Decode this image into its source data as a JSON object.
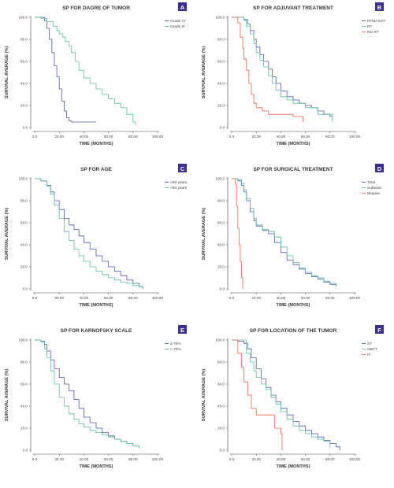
{
  "chart_data": [
    {
      "type": "line",
      "letter": "A",
      "title": "SP FOR DAGRE OF TUMOR",
      "xlabel": "TIME (MONTHS)",
      "ylabel": "SURVIVAL AVERAGE (%)",
      "xlim": [
        0,
        100
      ],
      "ylim": [
        0,
        100
      ],
      "xticks": [
        "0.0",
        "20.00",
        "40.00",
        "60.00",
        "80.00",
        "100.00"
      ],
      "yticks": [
        "0.0",
        "20.0",
        "40.0",
        "60.0",
        "80.0",
        "100.0"
      ],
      "legend_position": "top-right",
      "series": [
        {
          "name": "Grade IV",
          "color": "#4b5aa8",
          "x": [
            0,
            8,
            10,
            12,
            14,
            16,
            18,
            20,
            22,
            24,
            26,
            28,
            30,
            50
          ],
          "y": [
            100,
            97,
            90,
            80,
            68,
            56,
            46,
            35,
            24,
            15,
            9,
            6,
            5,
            5
          ]
        },
        {
          "name": "Grade III",
          "color": "#5bbfa0",
          "x": [
            0,
            5,
            10,
            15,
            18,
            20,
            23,
            25,
            28,
            30,
            33,
            36,
            40,
            45,
            50,
            55,
            60,
            65,
            70,
            75,
            80,
            82
          ],
          "y": [
            100,
            99,
            96,
            92,
            88,
            85,
            82,
            78,
            74,
            68,
            60,
            52,
            45,
            40,
            35,
            30,
            26,
            22,
            18,
            12,
            5,
            2
          ]
        }
      ]
    },
    {
      "type": "line",
      "letter": "B",
      "title": "SP FOR ADJUVANT TREATMENT",
      "xlabel": "TIME (MONTHS)",
      "ylabel": "SURVIVAL AVERAGE (%)",
      "xlim": [
        0,
        100
      ],
      "ylim": [
        0,
        100
      ],
      "xticks": [
        "0.0",
        "20.00",
        "40.00",
        "60.00",
        "80.00",
        "100.00"
      ],
      "yticks": [
        "0.0",
        "20.0",
        "40.0",
        "60.0",
        "80.0",
        "100.0"
      ],
      "legend_position": "top-right",
      "series": [
        {
          "name": "RTMASOT",
          "color": "#4b5aa8",
          "x": [
            0,
            10,
            13,
            15,
            18,
            20,
            23,
            26,
            30,
            33,
            36,
            40,
            45,
            50,
            55,
            60,
            65,
            70,
            75,
            80,
            82
          ],
          "y": [
            100,
            98,
            94,
            88,
            80,
            73,
            66,
            60,
            53,
            46,
            40,
            33,
            28,
            25,
            22,
            20,
            18,
            15,
            12,
            10,
            8
          ]
        },
        {
          "name": "RT",
          "color": "#5bbfa0",
          "x": [
            0,
            10,
            12,
            15,
            18,
            20,
            23,
            26,
            30,
            33,
            36,
            40,
            45,
            50,
            60,
            70,
            80,
            82
          ],
          "y": [
            100,
            97,
            92,
            85,
            76,
            68,
            61,
            55,
            47,
            40,
            34,
            28,
            25,
            22,
            18,
            12,
            12,
            5
          ]
        },
        {
          "name": "NO RT",
          "color": "#f0654a",
          "x": [
            0,
            5,
            7,
            9,
            10,
            12,
            14,
            16,
            18,
            20,
            25,
            30,
            40,
            50,
            55,
            58
          ],
          "y": [
            100,
            95,
            82,
            72,
            62,
            52,
            40,
            30,
            22,
            18,
            15,
            12,
            12,
            10,
            10,
            5
          ]
        }
      ]
    },
    {
      "type": "line",
      "letter": "C",
      "title": "SP FOR AGE",
      "xlabel": "TIME (MONTHS)",
      "ylabel": "SURVIVAL AVERAGE (%)",
      "xlim": [
        0,
        100
      ],
      "ylim": [
        0,
        100
      ],
      "xticks": [
        "0.0",
        "20.00",
        "40.00",
        "60.00",
        "80.00",
        "100.00"
      ],
      "yticks": [
        "0.0",
        "20.0",
        "40.0",
        "60.0",
        "80.0",
        "100.0"
      ],
      "legend_position": "top-right",
      "series": [
        {
          "name": "<60 years",
          "color": "#4b5aa8",
          "x": [
            0,
            5,
            10,
            13,
            16,
            20,
            24,
            28,
            32,
            36,
            40,
            45,
            50,
            55,
            60,
            65,
            70,
            75,
            80,
            85,
            88
          ],
          "y": [
            100,
            98,
            94,
            88,
            80,
            72,
            64,
            58,
            54,
            48,
            42,
            36,
            30,
            25,
            20,
            16,
            12,
            8,
            5,
            2,
            0
          ]
        },
        {
          "name": ">60 years",
          "color": "#5bbfa0",
          "x": [
            0,
            5,
            10,
            13,
            16,
            20,
            24,
            28,
            32,
            36,
            40,
            45,
            50,
            55,
            60,
            65,
            70,
            75,
            80,
            85,
            88
          ],
          "y": [
            100,
            98,
            93,
            86,
            76,
            64,
            52,
            44,
            36,
            30,
            25,
            20,
            16,
            13,
            10,
            8,
            6,
            5,
            3,
            2,
            0
          ]
        }
      ]
    },
    {
      "type": "line",
      "letter": "D",
      "title": "SP FOR SURGICAL TREATMENT",
      "xlabel": "TIME (MONTHS)",
      "ylabel": "SURVIVAL AVERAGE (%)",
      "xlim": [
        0,
        100
      ],
      "ylim": [
        0,
        100
      ],
      "xticks": [
        "0.0",
        "20.00",
        "40.00",
        "60.00",
        "80.00",
        "100.00"
      ],
      "yticks": [
        "0.0",
        "20.0",
        "40.0",
        "60.0",
        "80.0",
        "100.0"
      ],
      "legend_position": "top-right",
      "series": [
        {
          "name": "Total",
          "color": "#4b5aa8",
          "x": [
            0,
            5,
            8,
            10,
            12,
            15,
            18,
            20,
            25,
            30,
            35,
            40,
            45,
            50,
            55,
            60,
            65,
            70,
            75,
            80,
            85
          ],
          "y": [
            100,
            98,
            94,
            88,
            80,
            70,
            62,
            57,
            53,
            50,
            42,
            33,
            26,
            22,
            18,
            14,
            11,
            9,
            6,
            4,
            2
          ]
        },
        {
          "name": "Subtotal",
          "color": "#5bbfa0",
          "x": [
            0,
            5,
            8,
            10,
            12,
            15,
            18,
            20,
            25,
            30,
            35,
            40,
            45,
            50,
            55,
            60,
            65,
            70,
            75,
            80,
            85
          ],
          "y": [
            100,
            99,
            96,
            90,
            82,
            73,
            64,
            58,
            54,
            52,
            47,
            38,
            30,
            24,
            19,
            15,
            12,
            10,
            7,
            5,
            3
          ]
        },
        {
          "name": "Biopsia",
          "color": "#f0654a",
          "x": [
            0,
            3,
            4,
            5,
            6,
            7,
            8,
            9
          ],
          "y": [
            100,
            95,
            75,
            55,
            40,
            25,
            10,
            0
          ]
        }
      ]
    },
    {
      "type": "line",
      "letter": "E",
      "title": "SP FOR KARNOFSKY SCALE",
      "xlabel": "TIME (MONTHS)",
      "ylabel": "SURVIVAL AVERAGE (%)",
      "xlim": [
        0,
        100
      ],
      "ylim": [
        0,
        100
      ],
      "xticks": [
        "0.0",
        "20.00",
        "40.00",
        "60.00",
        "80.00",
        "100.00"
      ],
      "yticks": [
        "0.0",
        "20.0",
        "40.0",
        "60.0",
        "80.0",
        "100.0"
      ],
      "legend_position": "top-right",
      "series": [
        {
          "name": "≥ 70%",
          "color": "#4b5aa8",
          "x": [
            0,
            5,
            8,
            10,
            13,
            16,
            20,
            24,
            28,
            32,
            36,
            40,
            45,
            50,
            55,
            60,
            65,
            70,
            75,
            80,
            85
          ],
          "y": [
            100,
            99,
            96,
            90,
            82,
            74,
            66,
            60,
            54,
            46,
            38,
            30,
            25,
            20,
            16,
            13,
            10,
            8,
            6,
            4,
            2
          ]
        },
        {
          "name": "< 70%",
          "color": "#5bbfa0",
          "x": [
            0,
            5,
            8,
            10,
            13,
            16,
            20,
            24,
            28,
            32,
            36,
            40,
            45,
            50,
            55,
            60,
            65,
            70,
            75,
            80,
            85
          ],
          "y": [
            100,
            98,
            92,
            84,
            72,
            60,
            48,
            40,
            33,
            28,
            24,
            21,
            18,
            16,
            14,
            12,
            10,
            8,
            6,
            4,
            2
          ]
        }
      ]
    },
    {
      "type": "line",
      "letter": "F",
      "title": "SP FOR LOCATION OF THE TUMOR",
      "xlabel": "TIME (MONTHS)",
      "ylabel": "SURVIVAL AVERAGE (%)",
      "xlim": [
        0,
        100
      ],
      "ylim": [
        0,
        100
      ],
      "xticks": [
        "0.0",
        "20.00",
        "40.00",
        "60.00",
        "80.00",
        "100.00"
      ],
      "yticks": [
        "0.0",
        "20.0",
        "40.0",
        "60.0",
        "80.0",
        "100.0"
      ],
      "legend_position": "top-right",
      "series": [
        {
          "name": "ST",
          "color": "#4b5aa8",
          "x": [
            0,
            5,
            10,
            13,
            16,
            20,
            24,
            28,
            32,
            36,
            40,
            45,
            50,
            55,
            60,
            65,
            70,
            75,
            80,
            85,
            88
          ],
          "y": [
            100,
            99,
            97,
            92,
            84,
            74,
            65,
            57,
            50,
            44,
            38,
            32,
            26,
            22,
            18,
            15,
            12,
            9,
            6,
            3,
            0
          ]
        },
        {
          "name": "GBYT",
          "color": "#5bbfa0",
          "x": [
            0,
            10,
            12,
            15,
            18,
            20,
            24,
            28,
            32,
            36,
            40,
            45,
            50,
            55,
            60,
            65,
            70,
            75,
            80
          ],
          "y": [
            100,
            100,
            88,
            80,
            72,
            66,
            60,
            55,
            48,
            42,
            35,
            28,
            22,
            18,
            15,
            12,
            10,
            8,
            2
          ]
        },
        {
          "name": "IT",
          "color": "#f0654a",
          "x": [
            0,
            5,
            8,
            10,
            13,
            16,
            20,
            25,
            30,
            35,
            40,
            41
          ],
          "y": [
            100,
            88,
            75,
            62,
            50,
            38,
            32,
            32,
            32,
            20,
            15,
            0
          ]
        }
      ]
    }
  ]
}
